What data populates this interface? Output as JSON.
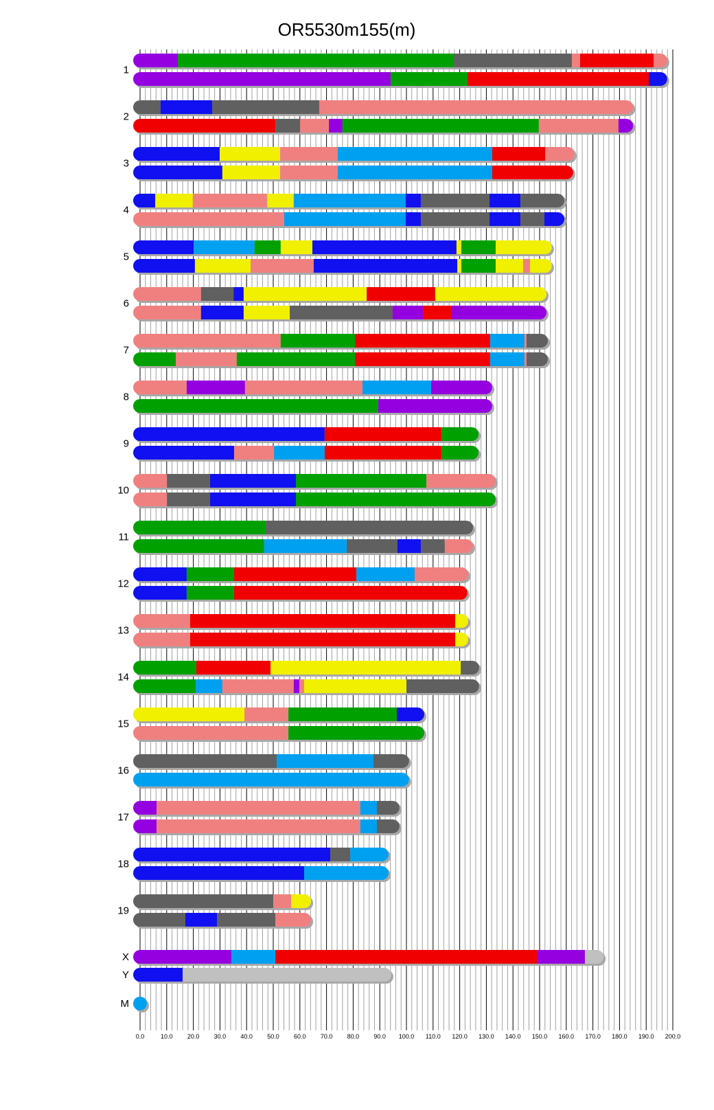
{
  "chart_data": {
    "type": "chromosome-painting",
    "title": "OR5530m155(m)",
    "xlim": [
      0,
      200
    ],
    "x_ticks": [
      "0.0",
      "10.0",
      "20.0",
      "30.0",
      "40.0",
      "50.0",
      "60.0",
      "70.0",
      "80.0",
      "90.0",
      "100.0",
      "110.0",
      "120.0",
      "130.0",
      "140.0",
      "150.0",
      "160.0",
      "170.0",
      "180.0",
      "190.0",
      "200.0"
    ],
    "grid": "vertical lines every 2 units, darker every 10",
    "colors": {
      "P": "#9400e0",
      "G": "#00a000",
      "D": "#606060",
      "K": "#f08080",
      "R": "#f00000",
      "B": "#1010f0",
      "Y": "#f0f000",
      "L": "#00a0f0",
      "S": "#c0c0c0"
    },
    "chromosomes": [
      {
        "label": "1",
        "haplotypes": [
          [
            [
              "P",
              14.2
            ],
            [
              "G",
              117.8
            ],
            [
              "D",
              162.1
            ],
            [
              "K",
              165.2
            ],
            [
              "R",
              192.8
            ],
            [
              "K",
              197.9
            ]
          ],
          [
            [
              "P",
              94.1
            ],
            [
              "G",
              122.9
            ],
            [
              "R",
              191.0
            ],
            [
              "B",
              197.9
            ]
          ]
        ]
      },
      {
        "label": "2",
        "haplotypes": [
          [
            [
              "D",
              7.7
            ],
            [
              "B",
              27.1
            ],
            [
              "D",
              67.3
            ],
            [
              "K",
              185.1
            ]
          ],
          [
            [
              "R",
              50.8
            ],
            [
              "D",
              60.1
            ],
            [
              "K",
              70.9
            ],
            [
              "P",
              76.0
            ],
            [
              "G",
              149.7
            ],
            [
              "K",
              179.6
            ],
            [
              "P",
              185.1
            ]
          ]
        ]
      },
      {
        "label": "3",
        "haplotypes": [
          [
            [
              "B",
              29.9
            ],
            [
              "Y",
              52.6
            ],
            [
              "K",
              74.2
            ],
            [
              "L",
              132.2
            ],
            [
              "R",
              152.1
            ],
            [
              "K",
              163.1
            ]
          ],
          [
            [
              "B",
              30.9
            ],
            [
              "Y",
              52.6
            ],
            [
              "K",
              74.2
            ],
            [
              "L",
              132.2
            ],
            [
              "R",
              162.6
            ]
          ]
        ]
      },
      {
        "label": "4",
        "haplotypes": [
          [
            [
              "B",
              5.7
            ],
            [
              "Y",
              19.8
            ],
            [
              "K",
              47.7
            ],
            [
              "Y",
              57.7
            ],
            [
              "L",
              99.7
            ],
            [
              "B",
              105.4
            ],
            [
              "D",
              131.2
            ],
            [
              "B",
              142.8
            ],
            [
              "D",
              159.3
            ]
          ],
          [
            [
              "K",
              54.1
            ],
            [
              "L",
              99.7
            ],
            [
              "B",
              105.4
            ],
            [
              "D",
              131.2
            ],
            [
              "B",
              142.8
            ],
            [
              "D",
              151.8
            ],
            [
              "B",
              159.3
            ]
          ]
        ]
      },
      {
        "label": "5",
        "haplotypes": [
          [
            [
              "B",
              20.1
            ],
            [
              "L",
              43.0
            ],
            [
              "G",
              52.8
            ],
            [
              "Y",
              64.7
            ],
            [
              "B",
              118.8
            ],
            [
              "Y",
              120.6
            ],
            [
              "G",
              133.5
            ],
            [
              "Y",
              154.6
            ]
          ],
          [
            [
              "B",
              20.6
            ],
            [
              "Y",
              41.5
            ],
            [
              "K",
              65.2
            ],
            [
              "B",
              119.1
            ],
            [
              "Y",
              120.6
            ],
            [
              "G",
              133.5
            ],
            [
              "Y",
              143.8
            ],
            [
              "K",
              146.4
            ],
            [
              "Y",
              154.6
            ]
          ]
        ]
      },
      {
        "label": "6",
        "haplotypes": [
          [
            [
              "K",
              22.9
            ],
            [
              "D",
              35.1
            ],
            [
              "B",
              38.9
            ],
            [
              "Y",
              85.1
            ],
            [
              "R",
              110.8
            ],
            [
              "Y",
              152.6
            ]
          ],
          [
            [
              "K",
              22.9
            ],
            [
              "B",
              38.9
            ],
            [
              "Y",
              56.2
            ],
            [
              "D",
              94.8
            ],
            [
              "P",
              106.2
            ],
            [
              "R",
              117.0
            ],
            [
              "P",
              152.6
            ]
          ]
        ]
      },
      {
        "label": "7",
        "haplotypes": [
          [
            [
              "K",
              52.8
            ],
            [
              "G",
              80.7
            ],
            [
              "R",
              131.4
            ],
            [
              "L",
              144.3
            ],
            [
              "K",
              145.1
            ],
            [
              "D",
              153.1
            ]
          ],
          [
            [
              "G",
              13.4
            ],
            [
              "K",
              36.3
            ],
            [
              "G",
              80.7
            ],
            [
              "R",
              131.4
            ],
            [
              "L",
              144.3
            ],
            [
              "K",
              145.1
            ],
            [
              "D",
              153.1
            ]
          ]
        ]
      },
      {
        "label": "8",
        "haplotypes": [
          [
            [
              "K",
              17.5
            ],
            [
              "P",
              39.4
            ],
            [
              "K",
              83.5
            ],
            [
              "L",
              109.3
            ],
            [
              "P",
              132.2
            ]
          ],
          [
            [
              "G",
              89.4
            ],
            [
              "P",
              132.2
            ]
          ]
        ]
      },
      {
        "label": "9",
        "haplotypes": [
          [
            [
              "B",
              69.3
            ],
            [
              "R",
              113.1
            ],
            [
              "G",
              127.1
            ]
          ],
          [
            [
              "B",
              35.3
            ],
            [
              "K",
              50.3
            ],
            [
              "L",
              69.3
            ],
            [
              "R",
              113.1
            ],
            [
              "G",
              127.1
            ]
          ]
        ]
      },
      {
        "label": "10",
        "haplotypes": [
          [
            [
              "K",
              10.1
            ],
            [
              "D",
              26.3
            ],
            [
              "B",
              58.5
            ],
            [
              "G",
              107.5
            ],
            [
              "K",
              133.5
            ]
          ],
          [
            [
              "K",
              10.1
            ],
            [
              "D",
              26.3
            ],
            [
              "B",
              58.5
            ],
            [
              "G",
              133.5
            ]
          ]
        ]
      },
      {
        "label": "11",
        "haplotypes": [
          [
            [
              "G",
              47.2
            ],
            [
              "D",
              125.0
            ]
          ],
          [
            [
              "G",
              46.6
            ],
            [
              "L",
              77.6
            ],
            [
              "D",
              96.6
            ],
            [
              "B",
              105.4
            ],
            [
              "D",
              114.4
            ],
            [
              "K",
              125.0
            ]
          ]
        ]
      },
      {
        "label": "12",
        "haplotypes": [
          [
            [
              "B",
              17.5
            ],
            [
              "G",
              35.3
            ],
            [
              "R",
              81.2
            ],
            [
              "L",
              103.1
            ],
            [
              "K",
              123.2
            ]
          ],
          [
            [
              "B",
              17.5
            ],
            [
              "G",
              35.3
            ],
            [
              "R",
              122.9
            ]
          ]
        ]
      },
      {
        "label": "13",
        "haplotypes": [
          [
            [
              "K",
              18.8
            ],
            [
              "R",
              118.3
            ],
            [
              "Y",
              123.2
            ]
          ],
          [
            [
              "K",
              18.8
            ],
            [
              "R",
              118.3
            ],
            [
              "Y",
              123.2
            ]
          ]
        ]
      },
      {
        "label": "14",
        "haplotypes": [
          [
            [
              "G",
              21.1
            ],
            [
              "R",
              49.0
            ],
            [
              "Y",
              120.4
            ],
            [
              "D",
              127.3
            ]
          ],
          [
            [
              "G",
              20.9
            ],
            [
              "L",
              30.9
            ],
            [
              "K",
              57.7
            ],
            [
              "P",
              59.8
            ],
            [
              "K",
              61.6
            ],
            [
              "Y",
              100.0
            ],
            [
              "D",
              127.3
            ]
          ]
        ]
      },
      {
        "label": "15",
        "haplotypes": [
          [
            [
              "Y",
              39.2
            ],
            [
              "K",
              55.7
            ],
            [
              "G",
              96.4
            ],
            [
              "B",
              106.7
            ]
          ],
          [
            [
              "K",
              55.7
            ],
            [
              "G",
              106.7
            ]
          ]
        ]
      },
      {
        "label": "16",
        "haplotypes": [
          [
            [
              "D",
              51.3
            ],
            [
              "L",
              87.6
            ],
            [
              "D",
              101.0
            ]
          ],
          [
            [
              "L",
              101.0
            ]
          ]
        ]
      },
      {
        "label": "17",
        "haplotypes": [
          [
            [
              "P",
              6.2
            ],
            [
              "K",
              82.7
            ],
            [
              "L",
              88.9
            ],
            [
              "D",
              97.4
            ]
          ],
          [
            [
              "P",
              6.2
            ],
            [
              "K",
              82.7
            ],
            [
              "L",
              88.9
            ],
            [
              "D",
              97.4
            ]
          ]
        ]
      },
      {
        "label": "18",
        "haplotypes": [
          [
            [
              "B",
              71.4
            ],
            [
              "D",
              78.9
            ],
            [
              "L",
              93.3
            ]
          ],
          [
            [
              "B",
              61.6
            ],
            [
              "L",
              93.3
            ]
          ]
        ]
      },
      {
        "label": "19",
        "haplotypes": [
          [
            [
              "D",
              50.0
            ],
            [
              "K",
              56.7
            ],
            [
              "Y",
              64.2
            ]
          ],
          [
            [
              "D",
              17.0
            ],
            [
              "B",
              28.9
            ],
            [
              "D",
              50.8
            ],
            [
              "K",
              64.2
            ]
          ]
        ]
      },
      {
        "label": "X",
        "haplotypes": [
          [
            [
              "P",
              34.3
            ],
            [
              "L",
              50.8
            ],
            [
              "R",
              149.0
            ],
            [
              "P",
              167.0
            ],
            [
              "S",
              174.0
            ]
          ]
        ]
      },
      {
        "label": "Y",
        "haplotypes": [
          [
            [
              "B",
              16.0
            ],
            [
              "S",
              94.3
            ]
          ]
        ]
      },
      {
        "label": "M",
        "haplotypes": [
          [
            [
              "L",
              0.5
            ]
          ]
        ]
      }
    ]
  }
}
